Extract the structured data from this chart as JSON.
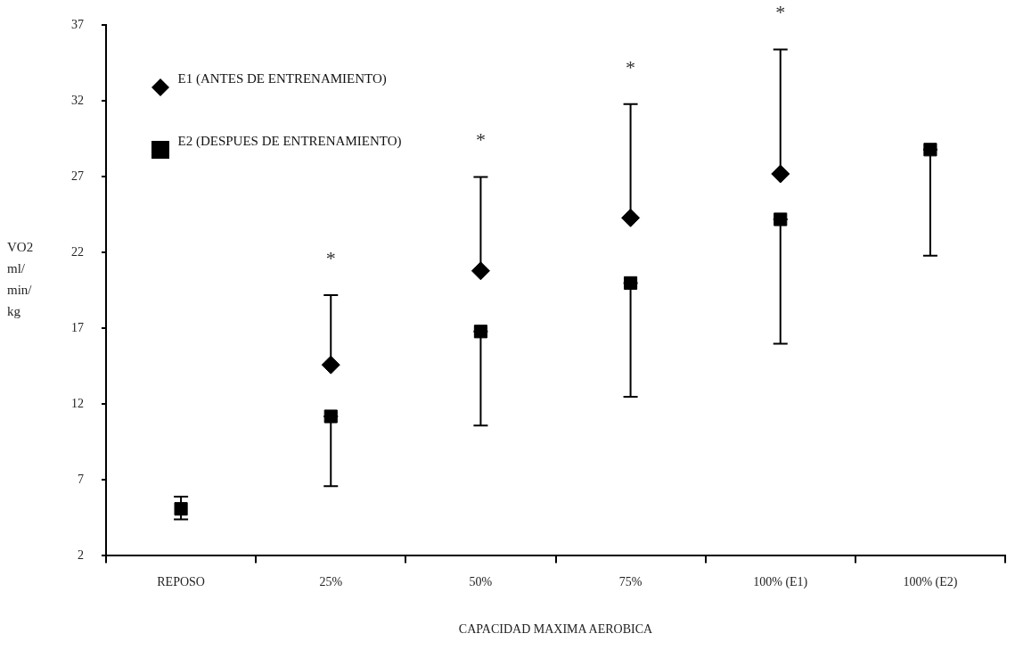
{
  "chart_data": {
    "type": "scatter",
    "xlabel": "CAPACIDAD MAXIMA AEROBICA",
    "ylabel": "VO2 ml/ min/ kg",
    "categories": [
      "REPOSO",
      "25%",
      "50%",
      "75%",
      "100% (E1)",
      "100% (E2)"
    ],
    "series": [
      {
        "name": "E1 (ANTES DE ENTRENAMIENTO)",
        "color": "#000000",
        "marker": "diamond",
        "values": [
          null,
          14.6,
          20.8,
          24.3,
          27.2,
          null
        ],
        "errors": [
          null,
          [
            14.6,
            19.2
          ],
          [
            20.8,
            27.0
          ],
          [
            24.3,
            31.8
          ],
          [
            27.2,
            35.4
          ],
          null
        ]
      },
      {
        "name": "E2 (DESPUES DE ENTRENAMIENTO)",
        "color": "#000000",
        "marker": "square",
        "values": [
          5.1,
          11.2,
          16.8,
          20.0,
          24.2,
          28.8
        ],
        "errors": [
          [
            4.4,
            5.9
          ],
          [
            6.6,
            11.2
          ],
          [
            10.6,
            16.8
          ],
          [
            12.5,
            20.0
          ],
          [
            16.0,
            24.2
          ],
          [
            21.8,
            28.8
          ]
        ]
      }
    ],
    "ylim": [
      2,
      37
    ],
    "yticks": [
      2,
      7,
      12,
      17,
      22,
      27,
      32,
      37
    ],
    "grid": false,
    "legend": "top left",
    "annotations": [
      {
        "text": "*",
        "x": "25%",
        "y": 19.2
      },
      {
        "text": "*",
        "x": "50%",
        "y": 27.0
      },
      {
        "text": "*",
        "x": "75%",
        "y": 31.8
      },
      {
        "text": "*",
        "x": "100% (E1)",
        "y": 35.4
      }
    ]
  }
}
